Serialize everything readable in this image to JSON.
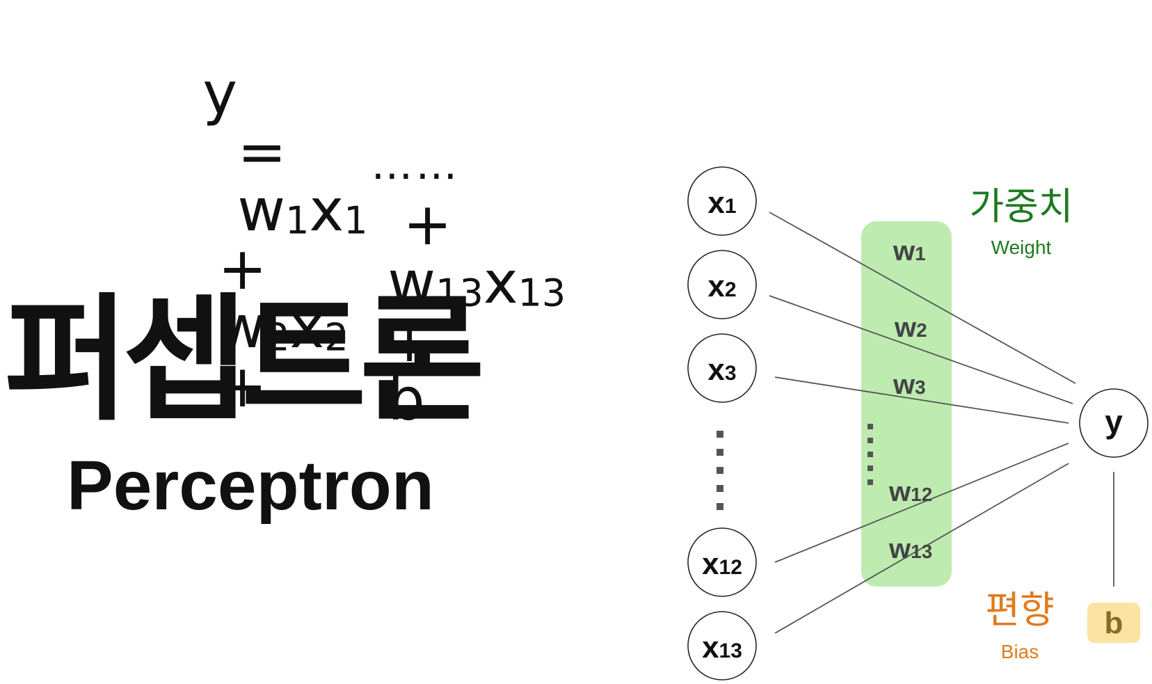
{
  "equation": {
    "line1": {
      "y": "y",
      "eq": "=",
      "w1": "w",
      "w1_sub": "1",
      "x1": "x",
      "x1_sub": "1",
      "plus1": "+",
      "w2": "w",
      "w2_sub": "2",
      "x2": "x",
      "x2_sub": "2",
      "plus2": "+"
    },
    "line2": {
      "dots": "……",
      "plus3": "+",
      "w13": "w",
      "w13_sub": "13",
      "x13": "x",
      "x13_sub": "13",
      "plus4": "+",
      "b": "b"
    }
  },
  "title": {
    "korean": "퍼셉트론",
    "english": "Perceptron"
  },
  "diagram": {
    "inputs": [
      {
        "label": "x",
        "sub": "1"
      },
      {
        "label": "x",
        "sub": "2"
      },
      {
        "label": "x",
        "sub": "3"
      },
      {
        "label": "x",
        "sub": "12"
      },
      {
        "label": "x",
        "sub": "13"
      }
    ],
    "weights": [
      {
        "label": "w",
        "sub": "1"
      },
      {
        "label": "w",
        "sub": "2"
      },
      {
        "label": "w",
        "sub": "3"
      },
      {
        "label": "w",
        "sub": "12"
      },
      {
        "label": "w",
        "sub": "13"
      }
    ],
    "output": "y",
    "weight_title_ko": "가중치",
    "weight_title_en": "Weight",
    "bias_title_ko": "편향",
    "bias_title_en": "Bias",
    "bias_symbol": "b",
    "colors": {
      "weight_band": "#bdebb0",
      "weight_text": "#1e7a1e",
      "bias_text": "#e07b1f",
      "bias_box": "#fbe3a3",
      "line": "#555555"
    }
  }
}
